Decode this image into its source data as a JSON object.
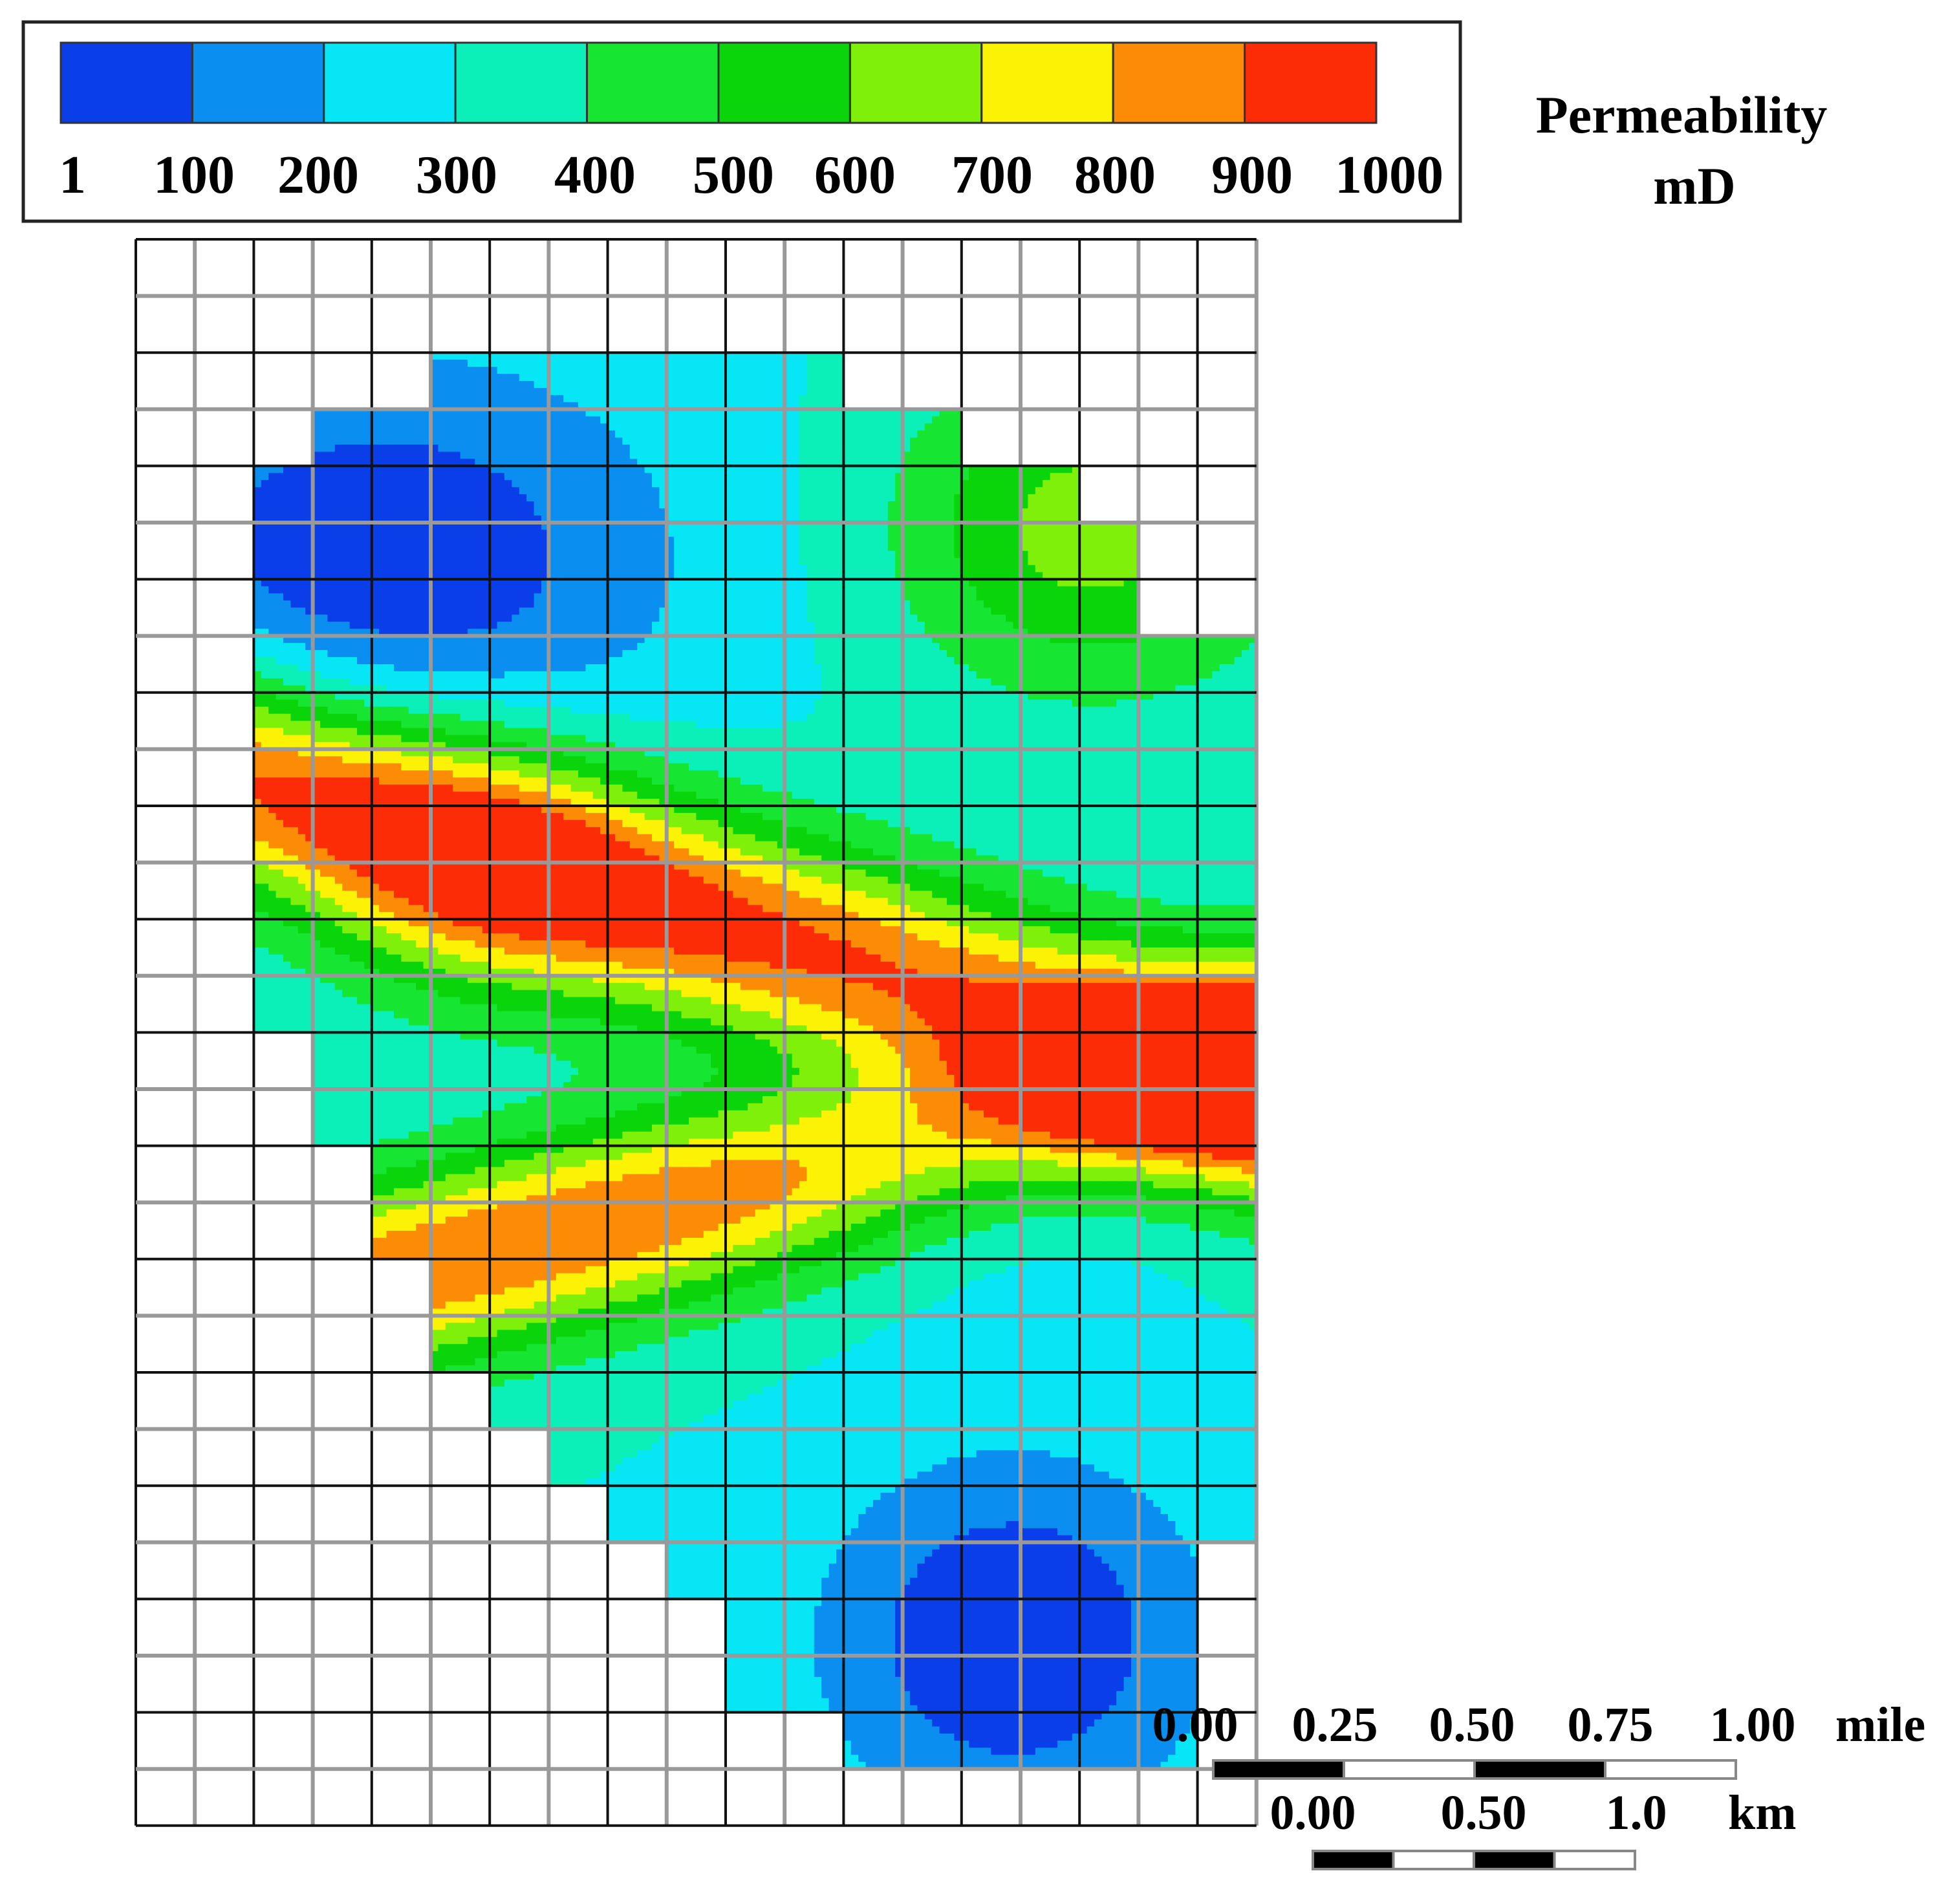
{
  "legend": {
    "title": "Permeability",
    "unit": "mD",
    "colors": [
      "#0a3ee8",
      "#0a8ef0",
      "#06e6f4",
      "#0af0b8",
      "#16e632",
      "#0ad40a",
      "#7ef00a",
      "#fcf206",
      "#fc8c06",
      "#fc2c06"
    ],
    "tick_labels": [
      "1",
      "100",
      "200",
      "300",
      "400",
      "500",
      "600",
      "700",
      "800",
      "900",
      "1000"
    ]
  },
  "grid": {
    "cols": 19,
    "rows": 28
  },
  "map_field": {
    "description_hint": "gridded reservoir permeability contour map",
    "max_value": 1000,
    "void_color": "#ffffff"
  },
  "scale_bar_mile": {
    "labels": [
      "0.00",
      "0.25",
      "0.50",
      "0.75",
      "1.00"
    ],
    "unit": "mile"
  },
  "scale_bar_km": {
    "labels": [
      "0.00",
      "0.50",
      "1.0"
    ],
    "unit": "km"
  }
}
